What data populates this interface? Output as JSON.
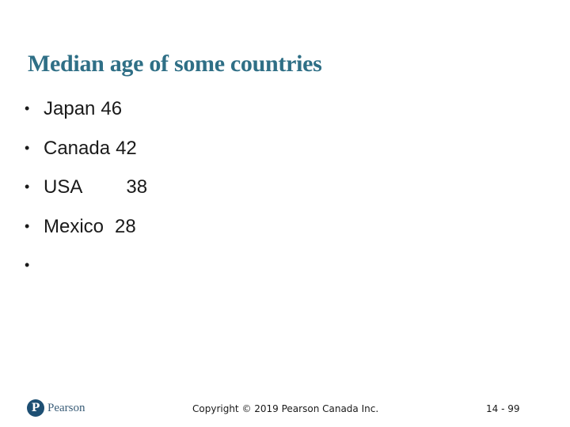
{
  "slide": {
    "title": "Median age of some countries",
    "bullet_marker": "•",
    "bullets": [
      {
        "name": "Japan",
        "value": "46"
      },
      {
        "name": "Canada",
        "value": "42"
      },
      {
        "name": "USA",
        "value": "38"
      },
      {
        "name": "Mexico",
        "value": "28"
      },
      {
        "name": "",
        "value": ""
      }
    ]
  },
  "footer": {
    "logo_icon": "pearson-logo-icon",
    "logo_letter": "P",
    "logo_text": "Pearson",
    "logo_color": "#1d4f73",
    "copyright": "Copyright © 2019 Pearson Canada Inc.",
    "page_number": "14 - 99"
  },
  "colors": {
    "title": "#2f6f86",
    "body_text": "#1a1a1a",
    "background": "#ffffff"
  }
}
